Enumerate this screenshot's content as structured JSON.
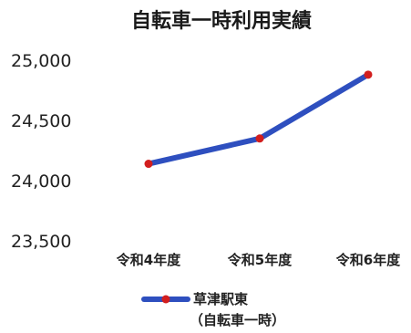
{
  "chart_data": {
    "type": "line",
    "title": "自転車一時利用実績",
    "categories": [
      "令和4年度",
      "令和5年度",
      "令和6年度"
    ],
    "series": [
      {
        "name": "草津駅東",
        "name_sub": "（自転車一時）",
        "values": [
          24140,
          24350,
          24880
        ],
        "color": "#2e4fbf",
        "marker_color": "#d21e1e"
      }
    ],
    "ylim": [
      23500,
      25000
    ],
    "yticks": [
      23500,
      24000,
      24500,
      25000
    ],
    "ytick_labels": [
      "23,500",
      "24,000",
      "24,500",
      "25,000"
    ],
    "grid": false,
    "legend_position": "bottom-left"
  }
}
